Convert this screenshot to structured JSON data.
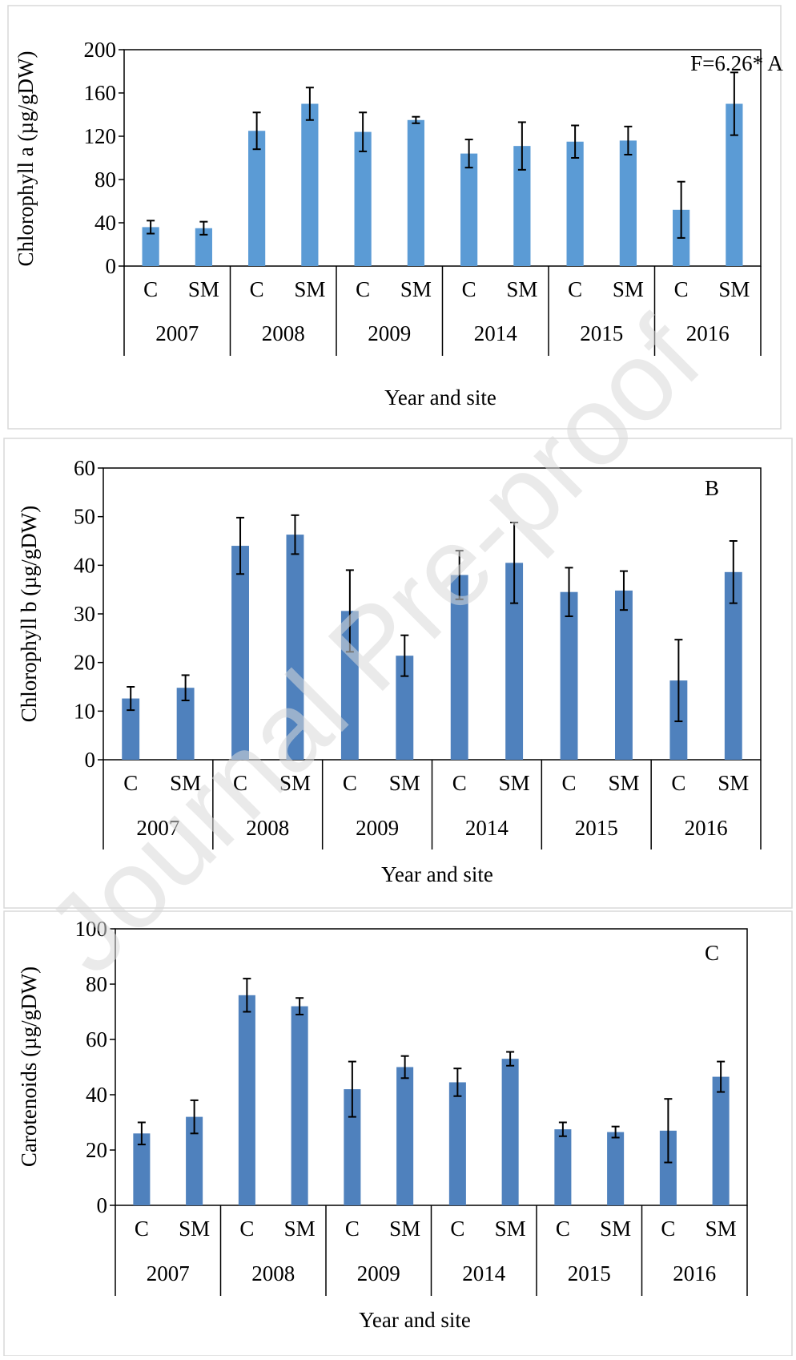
{
  "watermark": "Journal Pre-proof",
  "chart_data": [
    {
      "type": "bar",
      "panel_label": "F=6.26* A",
      "ylabel": "Chlorophyll a (µg/gDW)",
      "xlabel": "Year and site",
      "ylim": [
        0,
        200
      ],
      "yticks": [
        0,
        40,
        80,
        120,
        160,
        200
      ],
      "years": [
        "2007",
        "2008",
        "2009",
        "2014",
        "2015",
        "2016"
      ],
      "sites": [
        "C",
        "SM"
      ],
      "values": [
        36,
        35,
        125,
        150,
        124,
        135,
        104,
        111,
        115,
        116,
        52,
        150
      ],
      "errors": [
        6,
        6,
        17,
        15,
        18,
        3,
        13,
        22,
        15,
        13,
        26,
        29
      ],
      "bar_color": "#5b9bd5",
      "grid": false
    },
    {
      "type": "bar",
      "panel_label": "B",
      "ylabel": "Chlorophyll b (µg/gDW)",
      "xlabel": "Year and site",
      "ylim": [
        0,
        60
      ],
      "yticks": [
        0,
        10,
        20,
        30,
        40,
        50,
        60
      ],
      "years": [
        "2007",
        "2008",
        "2009",
        "2014",
        "2015",
        "2016"
      ],
      "sites": [
        "C",
        "SM"
      ],
      "values": [
        12.6,
        14.8,
        44.0,
        46.3,
        30.6,
        21.4,
        38.0,
        40.5,
        34.5,
        34.8,
        16.3,
        38.6
      ],
      "errors": [
        2.4,
        2.6,
        5.8,
        4.0,
        8.4,
        4.2,
        5.0,
        8.3,
        5.0,
        4.0,
        8.4,
        6.4
      ],
      "bar_color": "#4f81bd",
      "grid": false
    },
    {
      "type": "bar",
      "panel_label": "C",
      "ylabel": "Carotenoids (µg/gDW)",
      "xlabel": "Year and site",
      "ylim": [
        0,
        100
      ],
      "yticks": [
        0,
        20,
        40,
        60,
        80,
        100
      ],
      "years": [
        "2007",
        "2008",
        "2009",
        "2014",
        "2015",
        "2016"
      ],
      "sites": [
        "C",
        "SM"
      ],
      "values": [
        26,
        32,
        76,
        72,
        42,
        50,
        44.5,
        53,
        27.5,
        26.5,
        27,
        46.5
      ],
      "errors": [
        4,
        6,
        6,
        3,
        10,
        4,
        5,
        2.5,
        2.5,
        2,
        11.5,
        5.5
      ],
      "bar_color": "#4f81bd",
      "grid": false
    }
  ]
}
